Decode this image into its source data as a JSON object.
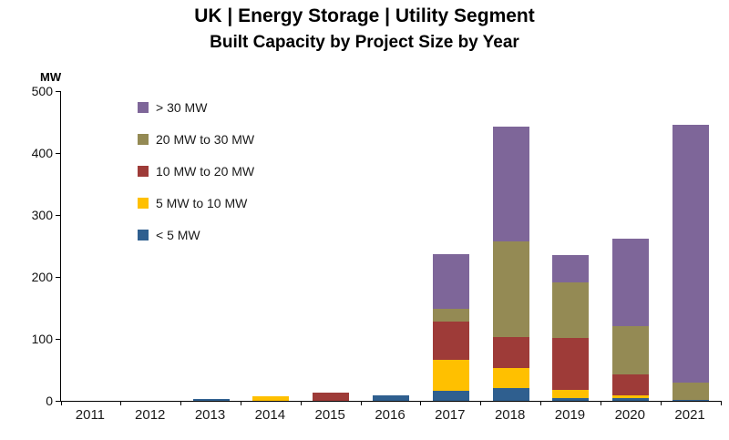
{
  "title": "UK | Energy Storage | Utility Segment",
  "subtitle": "Built Capacity by Project Size by Year",
  "y_axis_unit": "MW",
  "chart_data": {
    "type": "bar",
    "stacked": true,
    "title": "UK | Energy Storage | Utility Segment — Built Capacity by Project Size by Year",
    "xlabel": "",
    "ylabel": "MW",
    "ylim": [
      0,
      500
    ],
    "y_ticks": [
      0,
      100,
      200,
      300,
      400,
      500
    ],
    "grid": false,
    "legend_position": "top-left",
    "categories": [
      "2011",
      "2012",
      "2013",
      "2014",
      "2015",
      "2016",
      "2017",
      "2018",
      "2019",
      "2020",
      "2021"
    ],
    "series": [
      {
        "name": "< 5 MW",
        "color": "#2F5F8F",
        "values": [
          0,
          0,
          3,
          0,
          0,
          9,
          16,
          20,
          4,
          4,
          2
        ]
      },
      {
        "name": "5 MW to 10 MW",
        "color": "#FFC000",
        "values": [
          0,
          0,
          0,
          7,
          0,
          0,
          50,
          33,
          13,
          5,
          0
        ]
      },
      {
        "name": "10 MW to 20 MW",
        "color": "#9E3B38",
        "values": [
          0,
          0,
          0,
          0,
          13,
          0,
          62,
          50,
          85,
          34,
          0
        ]
      },
      {
        "name": "20 MW to 30 MW",
        "color": "#948A54",
        "values": [
          0,
          0,
          0,
          0,
          0,
          0,
          20,
          155,
          89,
          78,
          28
        ]
      },
      {
        "name": "> 30 MW",
        "color": "#7E6699",
        "values": [
          0,
          0,
          0,
          0,
          0,
          0,
          89,
          184,
          44,
          141,
          415
        ]
      }
    ]
  }
}
